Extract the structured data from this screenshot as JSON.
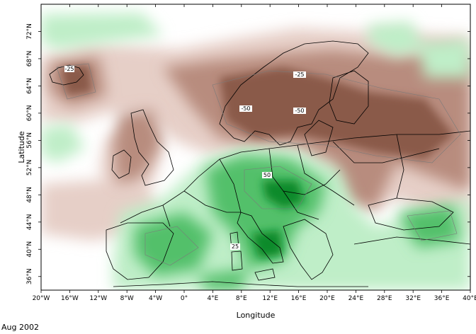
{
  "map": {
    "xlabel": "Longitude",
    "ylabel": "Latitude",
    "lon_range": [
      -20,
      40
    ],
    "lat_range": [
      34,
      76
    ],
    "lon_ticks": [
      "20°W",
      "16°W",
      "12°W",
      "8°W",
      "4°W",
      "0°",
      "4°E",
      "8°E",
      "12°E",
      "16°E",
      "20°E",
      "24°E",
      "28°E",
      "32°E",
      "36°E",
      "40°E"
    ],
    "lat_ticks": [
      "36°N",
      "40°N",
      "44°N",
      "48°N",
      "52°N",
      "56°N",
      "60°N",
      "64°N",
      "68°N",
      "72°N"
    ],
    "contour_labels": [
      "-25",
      "-50",
      "-50",
      "-25",
      "50",
      "25"
    ],
    "colors": {
      "negative_strong": "#8a5a4a",
      "negative_mid": "#b88c7e",
      "negative_light": "#e6cfc7",
      "positive_light": "#bfeec8",
      "positive_mid": "#52c06a",
      "positive_strong": "#0d8a2c"
    }
  },
  "footer": {
    "date": "Aug 2002"
  }
}
